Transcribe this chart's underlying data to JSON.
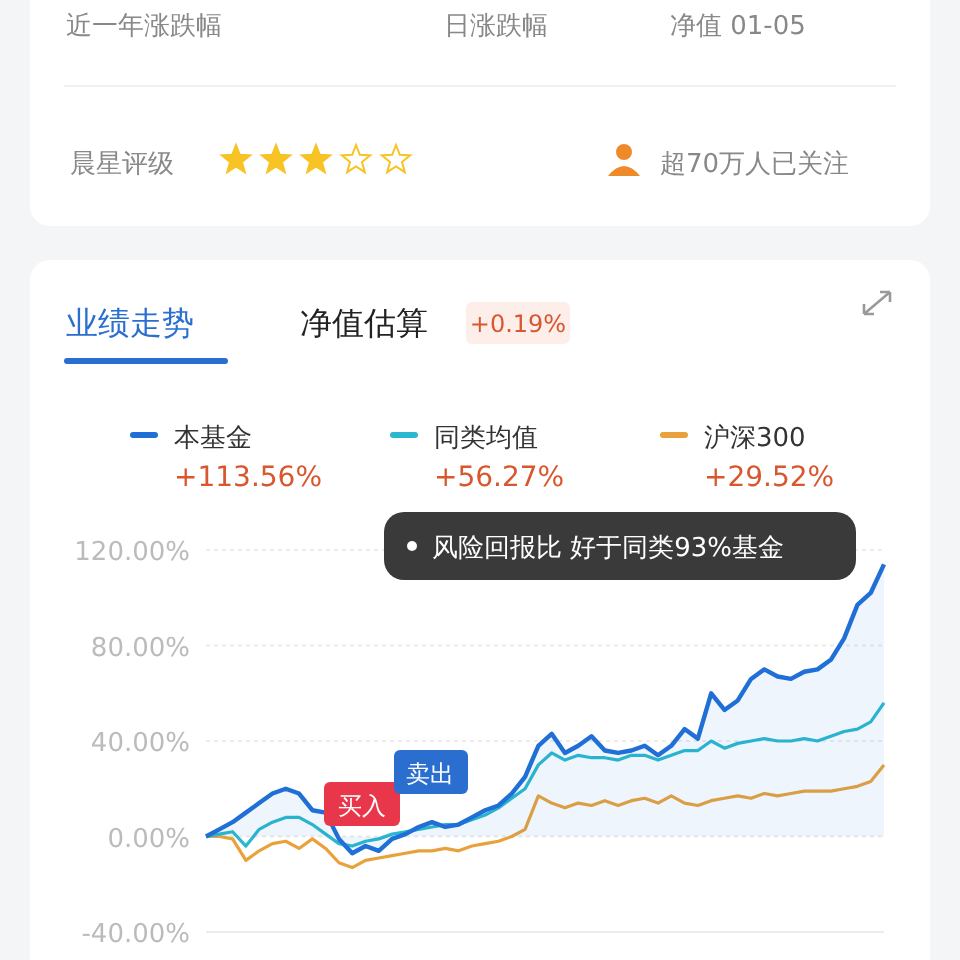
{
  "chart_data": {
    "type": "line",
    "annotations": [
      "近一年涨跌幅",
      "日涨跌幅",
      "净值 01-05",
      "晨星评级",
      "超70万人已关注",
      "业绩走势",
      "净值估算",
      "+0.19%",
      "+113.56%",
      "+56.27%",
      "+29.52%",
      "风险回报比 好于同类93%基金",
      "买入",
      "卖出"
    ],
    "categories": [
      null,
      null,
      null,
      null,
      null,
      null,
      null,
      null,
      null,
      null,
      null,
      null,
      null,
      null,
      null,
      null,
      null,
      null,
      null,
      null,
      null,
      null,
      null,
      null,
      null,
      null,
      null,
      null,
      null,
      null,
      null,
      null,
      null,
      null,
      null,
      null,
      null,
      null,
      null,
      null,
      null,
      null,
      null,
      null,
      null,
      null,
      null,
      null,
      null,
      null,
      null,
      null
    ],
    "series": [
      {
        "name": "本基金",
        "color": "#1f6fd6",
        "type": "area",
        "values": [
          0,
          3,
          6,
          10,
          14,
          18,
          20,
          18,
          11,
          10,
          -1,
          -7,
          -4,
          -6,
          -1,
          1,
          4,
          6,
          4,
          5,
          8,
          11,
          13,
          18,
          25,
          38,
          43,
          35,
          38,
          42,
          36,
          35,
          36,
          38,
          34,
          38,
          45,
          41,
          60,
          53,
          57,
          66,
          70,
          67,
          66,
          69,
          70,
          74,
          83,
          97,
          102,
          114
        ]
      },
      {
        "name": "同类均值",
        "color": "#2ab8cf",
        "values": [
          0,
          1,
          2,
          -4,
          3,
          6,
          8,
          8,
          5,
          1,
          -3,
          -4,
          -2,
          -1,
          1,
          2,
          3,
          4,
          5,
          5,
          7,
          9,
          12,
          16,
          20,
          30,
          35,
          32,
          34,
          33,
          33,
          32,
          34,
          34,
          32,
          34,
          36,
          36,
          40,
          37,
          39,
          40,
          41,
          40,
          40,
          41,
          40,
          42,
          44,
          45,
          48,
          56
        ]
      },
      {
        "name": "沪深300",
        "color": "#e9a23b",
        "values": [
          0,
          0,
          -1,
          -10,
          -6,
          -3,
          -2,
          -5,
          -1,
          -5,
          -11,
          -13,
          -10,
          -9,
          -8,
          -7,
          -6,
          -6,
          -5,
          -6,
          -4,
          -3,
          -2,
          0,
          3,
          17,
          14,
          12,
          14,
          13,
          15,
          13,
          15,
          16,
          14,
          17,
          14,
          13,
          15,
          16,
          17,
          16,
          18,
          17,
          18,
          19,
          19,
          19,
          20,
          21,
          23,
          30
        ]
      }
    ],
    "ylim": [
      -40,
      120
    ],
    "yticks": [
      {
        "value": -40,
        "label": "-40.00%"
      },
      {
        "value": 0,
        "label": "0.00%"
      },
      {
        "value": 40,
        "label": "40.00%"
      },
      {
        "value": 80,
        "label": "80.00%"
      },
      {
        "value": 120,
        "label": "120.00%"
      }
    ],
    "grid": "y",
    "legend": "top",
    "marker": "none",
    "line_style": "solid"
  }
}
